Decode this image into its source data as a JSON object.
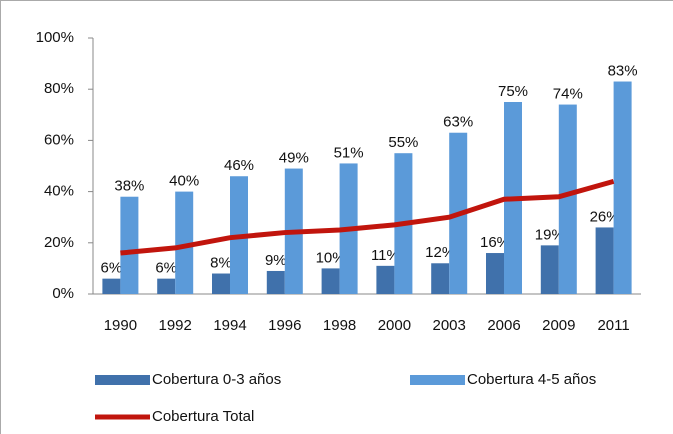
{
  "chart_data": {
    "type": "bar",
    "categories": [
      "1990",
      "1992",
      "1994",
      "1996",
      "1998",
      "2000",
      "2003",
      "2006",
      "2009",
      "2011"
    ],
    "series": [
      {
        "name": "Cobertura 0-3 años",
        "type": "bar",
        "color": "#4071ab",
        "values": [
          6,
          6,
          8,
          9,
          10,
          11,
          12,
          16,
          19,
          26
        ],
        "value_labels": [
          "6%",
          "6%",
          "8%",
          "9%",
          "10%",
          "11%",
          "12%",
          "16%",
          "19%",
          "26%"
        ]
      },
      {
        "name": "Cobertura 4-5 años",
        "type": "bar",
        "color": "#5b9ad9",
        "values": [
          38,
          40,
          46,
          49,
          51,
          55,
          63,
          75,
          74,
          83
        ],
        "value_labels": [
          "38%",
          "40%",
          "46%",
          "49%",
          "51%",
          "55%",
          "63%",
          "75%",
          "74%",
          "83%"
        ]
      },
      {
        "name": "Cobertura Total",
        "type": "line",
        "color": "#c1150d",
        "values": [
          16,
          18,
          22,
          24,
          25,
          27,
          30,
          37,
          38,
          44
        ]
      }
    ],
    "ylim": [
      0,
      100
    ],
    "yticks": [
      {
        "value": 0,
        "label": "0%"
      },
      {
        "value": 20,
        "label": "20%"
      },
      {
        "value": 40,
        "label": "40%"
      },
      {
        "value": 60,
        "label": "60%"
      },
      {
        "value": 80,
        "label": "80%"
      },
      {
        "value": 100,
        "label": "100%"
      }
    ]
  }
}
